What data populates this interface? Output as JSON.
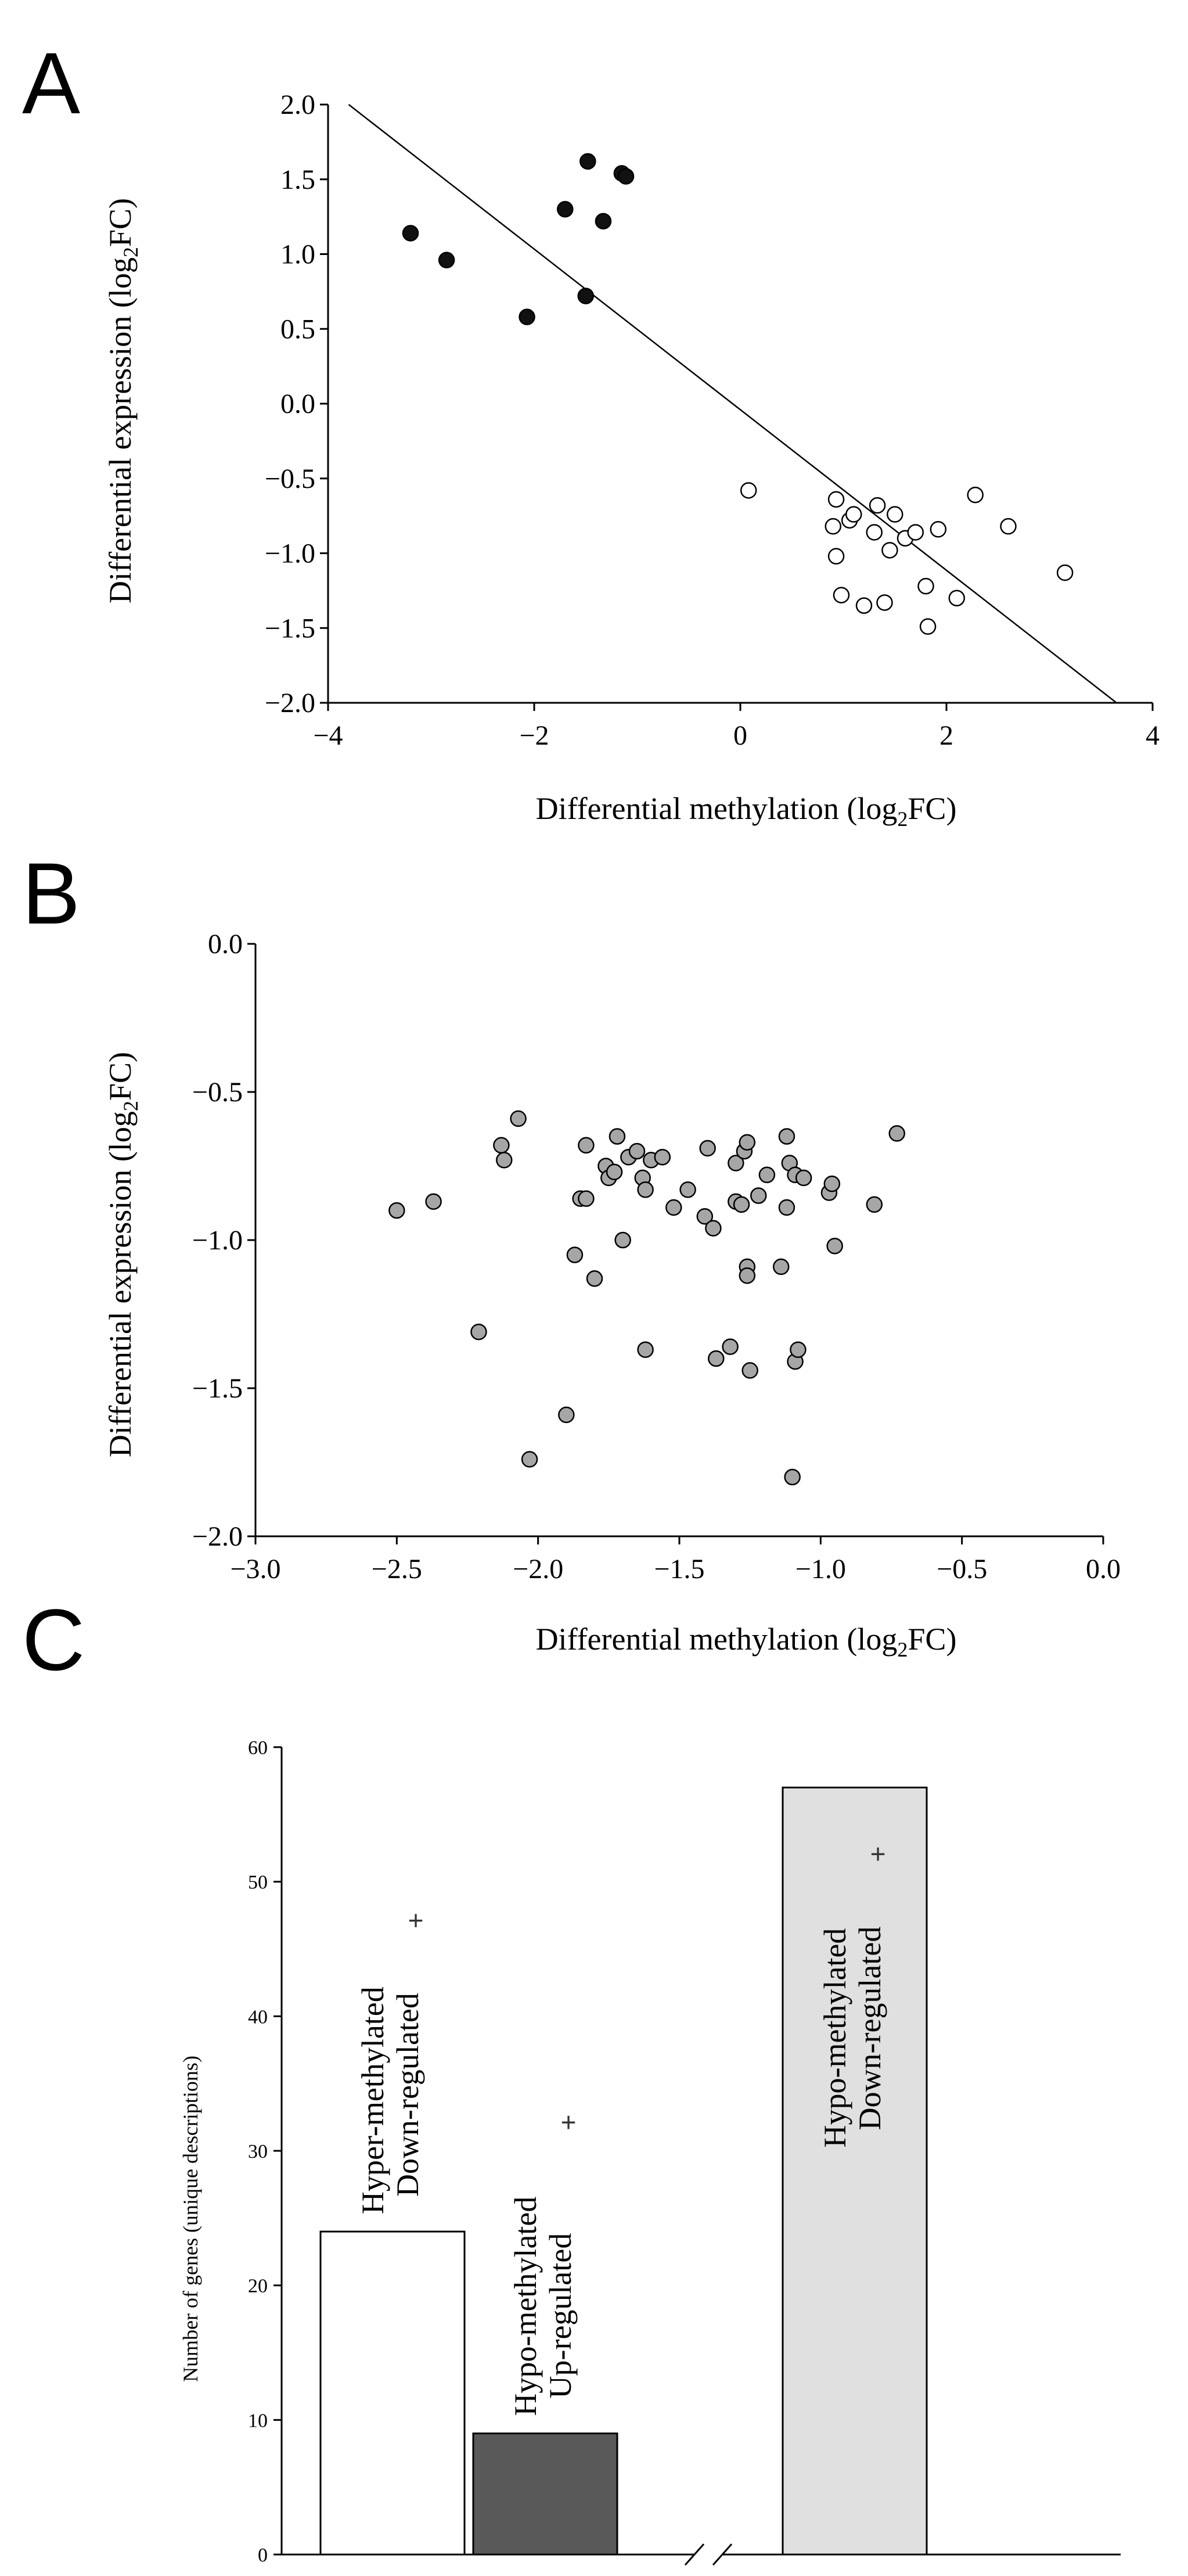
{
  "chart_data": [
    {
      "panel": "A",
      "type": "scatter",
      "xlabel": "Differential methylation (log2FC)",
      "ylabel": "Differential expression (log2FC)",
      "xlim": [
        -4,
        4
      ],
      "ylim": [
        -2.0,
        2.0
      ],
      "xticks": [
        "−4",
        "−2",
        "0",
        "2",
        "4"
      ],
      "yticks": [
        "−2.0",
        "−1.5",
        "−1.0",
        "−0.5",
        "0.0",
        "0.5",
        "1.0",
        "1.5",
        "2.0"
      ],
      "trendline": {
        "x": [
          -3.8,
          3.65
        ],
        "y": [
          2.0,
          -2.0
        ]
      },
      "series": [
        {
          "name": "Hyper-methylated + Down-regulated",
          "color": "#111111",
          "points": [
            [
              -3.2,
              1.14
            ],
            [
              -2.85,
              0.96
            ],
            [
              -2.07,
              0.58
            ],
            [
              -1.7,
              1.3
            ],
            [
              -1.48,
              1.62
            ],
            [
              -1.5,
              0.72
            ],
            [
              -1.33,
              1.22
            ],
            [
              -1.15,
              1.54
            ],
            [
              -1.11,
              1.52
            ]
          ]
        },
        {
          "name": "Hypo-methylated + Up-regulated",
          "color": "#ffffff",
          "points": [
            [
              0.08,
              -0.58
            ],
            [
              0.9,
              -0.82
            ],
            [
              0.93,
              -0.64
            ],
            [
              0.93,
              -1.02
            ],
            [
              0.98,
              -1.28
            ],
            [
              1.06,
              -0.78
            ],
            [
              1.1,
              -0.74
            ],
            [
              1.2,
              -1.35
            ],
            [
              1.3,
              -0.86
            ],
            [
              1.33,
              -0.68
            ],
            [
              1.4,
              -1.33
            ],
            [
              1.45,
              -0.98
            ],
            [
              1.5,
              -0.74
            ],
            [
              1.6,
              -0.9
            ],
            [
              1.7,
              -0.86
            ],
            [
              1.8,
              -1.22
            ],
            [
              1.82,
              -1.49
            ],
            [
              1.92,
              -0.84
            ],
            [
              2.1,
              -1.3
            ],
            [
              2.28,
              -0.61
            ],
            [
              2.6,
              -0.82
            ],
            [
              3.15,
              -1.13
            ]
          ]
        }
      ]
    },
    {
      "panel": "B",
      "type": "scatter",
      "xlabel": "Differential methylation (log2FC)",
      "ylabel": "Differential expression (log2FC)",
      "xlim": [
        -3.0,
        0.0
      ],
      "ylim": [
        -2.0,
        0.0
      ],
      "xticks": [
        "−3.0",
        "−2.5",
        "−2.0",
        "−1.5",
        "−1.0",
        "−0.5",
        "0.0"
      ],
      "yticks": [
        "−2.0",
        "−1.5",
        "−1.0",
        "−0.5",
        "0.0"
      ],
      "series": [
        {
          "name": "Hypo-methylated + Down-regulated",
          "color": "#a6a6a6",
          "points": [
            [
              -2.5,
              -0.9
            ],
            [
              -2.37,
              -0.87
            ],
            [
              -2.21,
              -1.31
            ],
            [
              -2.13,
              -0.68
            ],
            [
              -2.12,
              -0.73
            ],
            [
              -2.07,
              -0.59
            ],
            [
              -2.03,
              -1.74
            ],
            [
              -1.9,
              -1.59
            ],
            [
              -1.87,
              -1.05
            ],
            [
              -1.85,
              -0.86
            ],
            [
              -1.83,
              -0.68
            ],
            [
              -1.83,
              -0.86
            ],
            [
              -1.8,
              -1.13
            ],
            [
              -1.76,
              -0.75
            ],
            [
              -1.75,
              -0.79
            ],
            [
              -1.73,
              -0.77
            ],
            [
              -1.72,
              -0.65
            ],
            [
              -1.7,
              -1.0
            ],
            [
              -1.68,
              -0.72
            ],
            [
              -1.65,
              -0.7
            ],
            [
              -1.63,
              -0.79
            ],
            [
              -1.62,
              -0.83
            ],
            [
              -1.62,
              -1.37
            ],
            [
              -1.6,
              -0.73
            ],
            [
              -1.56,
              -0.72
            ],
            [
              -1.52,
              -0.89
            ],
            [
              -1.47,
              -0.83
            ],
            [
              -1.41,
              -0.92
            ],
            [
              -1.4,
              -0.69
            ],
            [
              -1.38,
              -0.96
            ],
            [
              -1.37,
              -1.4
            ],
            [
              -1.32,
              -1.36
            ],
            [
              -1.3,
              -0.74
            ],
            [
              -1.3,
              -0.87
            ],
            [
              -1.28,
              -0.88
            ],
            [
              -1.27,
              -0.7
            ],
            [
              -1.26,
              -0.67
            ],
            [
              -1.26,
              -1.09
            ],
            [
              -1.26,
              -1.12
            ],
            [
              -1.25,
              -1.44
            ],
            [
              -1.22,
              -0.85
            ],
            [
              -1.19,
              -0.78
            ],
            [
              -1.14,
              -1.09
            ],
            [
              -1.12,
              -0.65
            ],
            [
              -1.12,
              -0.89
            ],
            [
              -1.11,
              -0.74
            ],
            [
              -1.1,
              -1.8
            ],
            [
              -1.09,
              -0.78
            ],
            [
              -1.09,
              -1.41
            ],
            [
              -1.08,
              -1.37
            ],
            [
              -1.06,
              -0.79
            ],
            [
              -0.97,
              -0.84
            ],
            [
              -0.96,
              -0.81
            ],
            [
              -0.95,
              -1.02
            ],
            [
              -0.81,
              -0.88
            ],
            [
              -0.73,
              -0.64
            ]
          ]
        }
      ]
    },
    {
      "panel": "C",
      "type": "bar",
      "ylabel": "Number of genes (unique descriptions)",
      "ylim": [
        0,
        60
      ],
      "yticks": [
        "0",
        "10",
        "20",
        "30",
        "40",
        "50",
        "60"
      ],
      "axis_break": true,
      "bars": [
        {
          "line1": "Hyper-methylated",
          "plus": "+",
          "line2": "Down-regulated",
          "value": 24,
          "color": "#ffffff"
        },
        {
          "line1": "Hypo-methylated",
          "plus": "+",
          "line2": "Up-regulated",
          "value": 9,
          "color": "#595959"
        },
        {
          "line1": "Hypo-methylated",
          "plus": "+",
          "line2": "Down-regulated",
          "value": 57,
          "color": "#e0e0e0"
        }
      ]
    }
  ],
  "panels": {
    "a": "A",
    "b": "B",
    "c": "C"
  }
}
